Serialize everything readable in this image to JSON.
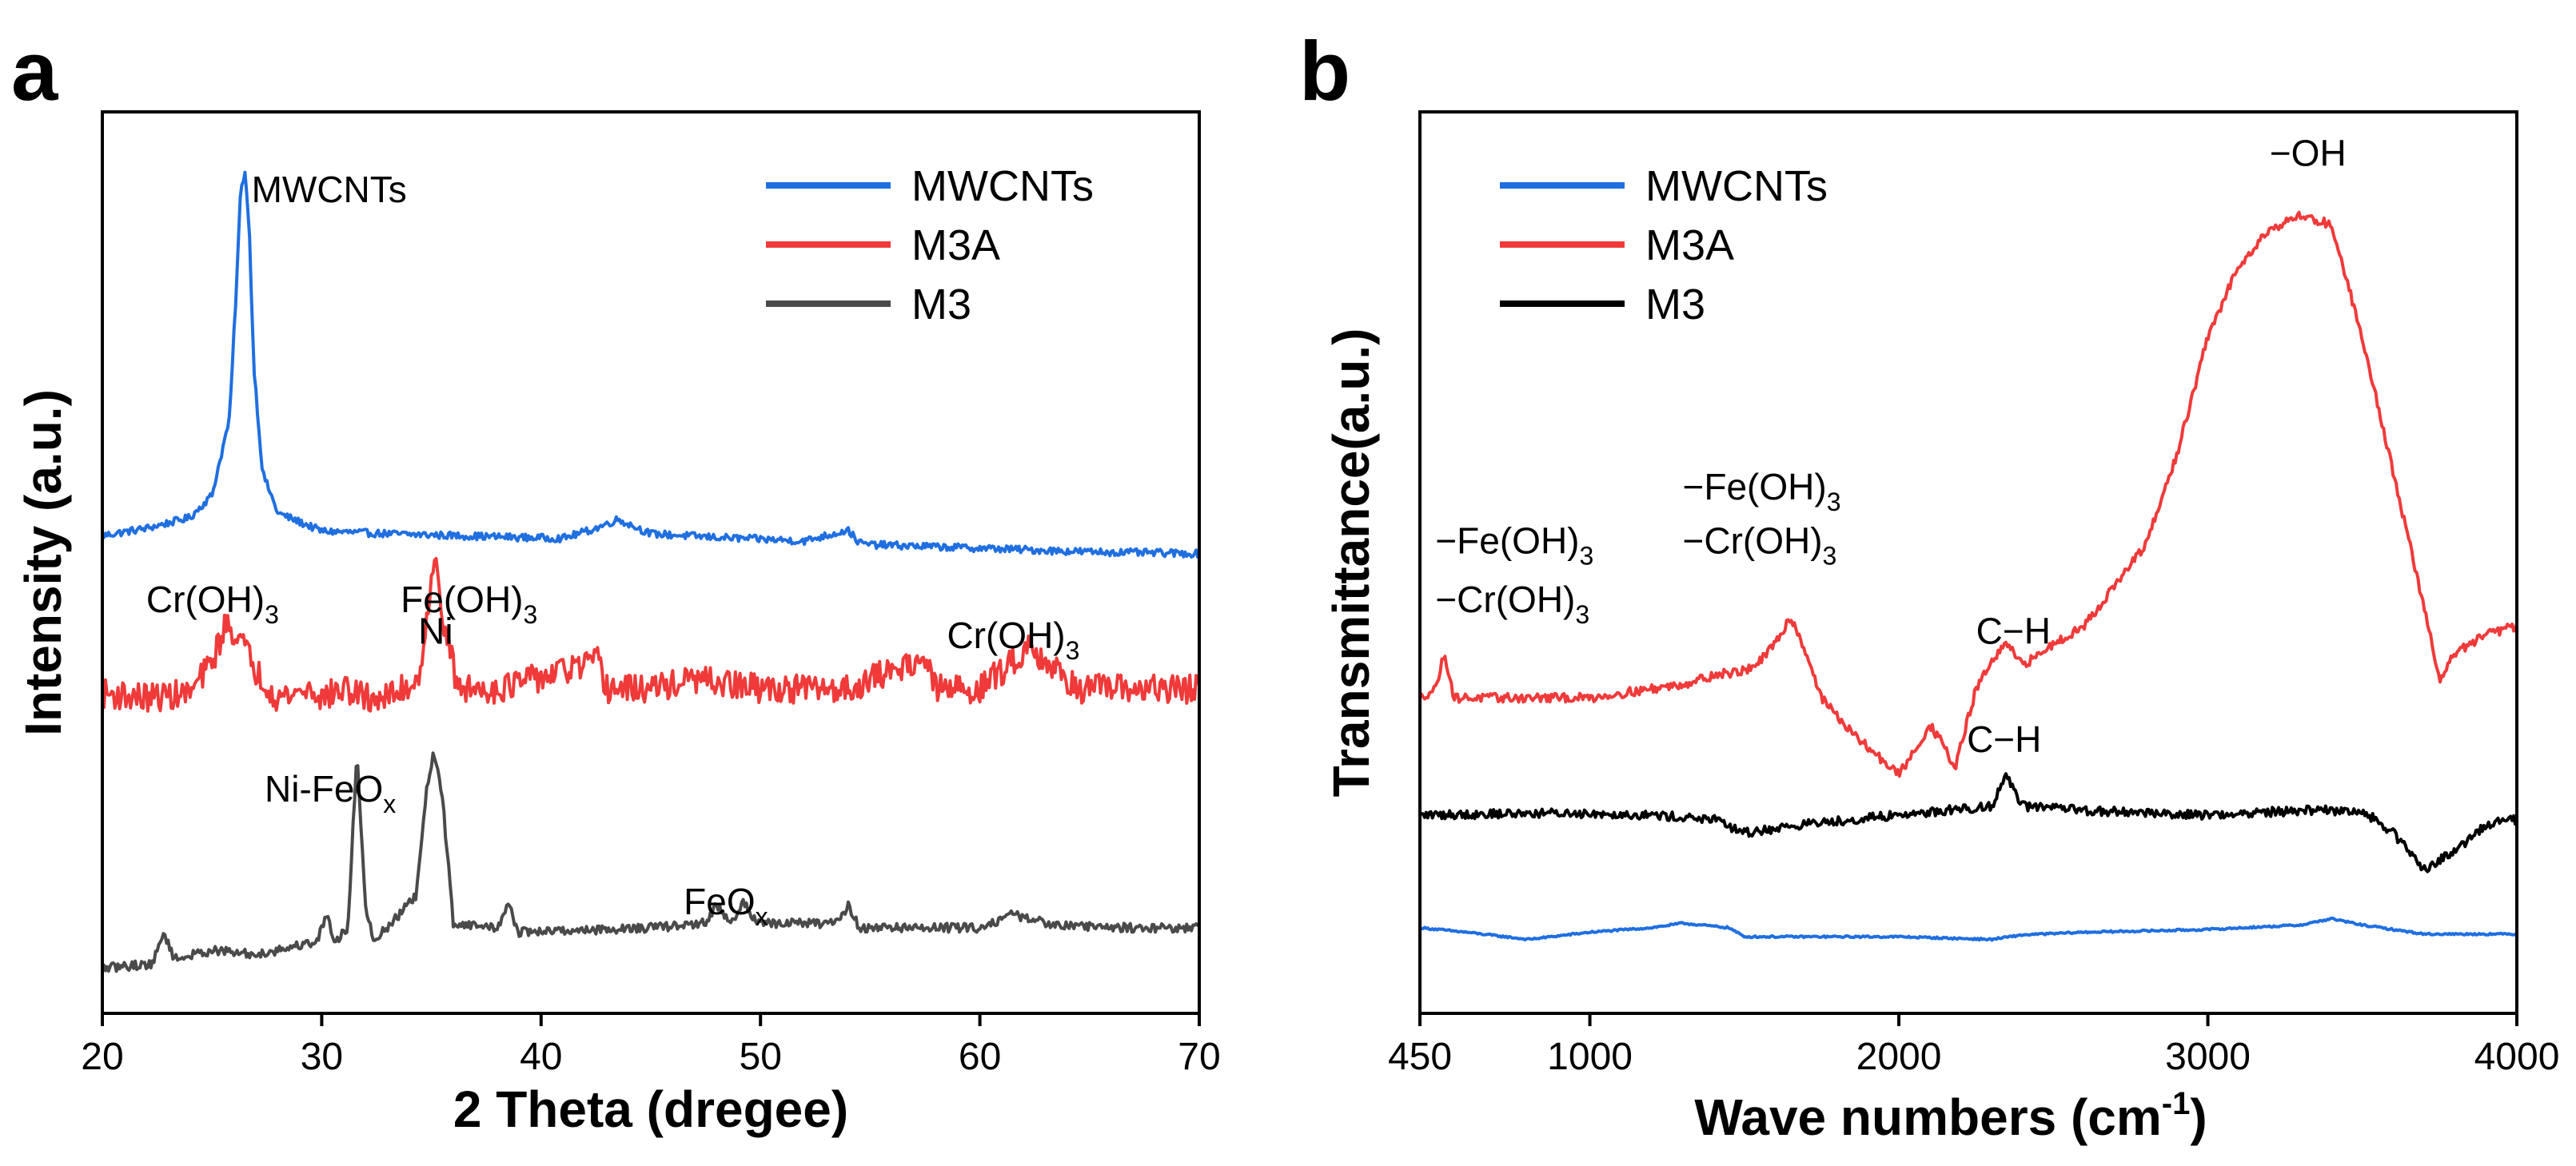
{
  "colors": {
    "mwcnts": "#1f6fe0",
    "m3a": "#f03a3a",
    "m3_xrd": "#4a4a4a",
    "m3_ftir": "#000000",
    "axis": "#000000"
  },
  "chart_data": [
    {
      "panel": "a",
      "type": "line",
      "title": "",
      "xlabel": "2 Theta (dregee)",
      "ylabel": "Intensity (a.u.)",
      "xlim": [
        20,
        70
      ],
      "ylim": [
        0,
        10
      ],
      "xticks": [
        20,
        30,
        40,
        50,
        60,
        70
      ],
      "yticks_shown": false,
      "legend_position": "top-right",
      "legend": [
        "MWCNTs",
        "M3A",
        "M3"
      ],
      "series": [
        {
          "name": "MWCNTs",
          "color": "#1f6fe0",
          "x": [
            20,
            22,
            24,
            25,
            25.8,
            26.1,
            26.3,
            26.5,
            26.7,
            26.9,
            27.3,
            28,
            30,
            33,
            36,
            39,
            41,
            42.5,
            43.5,
            45,
            48,
            52,
            54,
            54.5,
            55,
            60,
            65,
            70
          ],
          "y": [
            5.3,
            5.38,
            5.5,
            5.75,
            6.6,
            8.0,
            9.1,
            9.35,
            8.7,
            7.2,
            6.0,
            5.55,
            5.35,
            5.32,
            5.3,
            5.28,
            5.27,
            5.38,
            5.48,
            5.32,
            5.28,
            5.24,
            5.36,
            5.22,
            5.2,
            5.16,
            5.12,
            5.1
          ],
          "noise": 0.04
        },
        {
          "name": "M3A",
          "color": "#f03a3a",
          "x": [
            20,
            22,
            24,
            25,
            25.6,
            26.2,
            27,
            28,
            29.5,
            30,
            31,
            32,
            33,
            34.4,
            34.9,
            35.2,
            35.6,
            36.2,
            38,
            42.6,
            43,
            45,
            47,
            50,
            54,
            57.4,
            58,
            60,
            61.5,
            62.3,
            63,
            64.5,
            66,
            68,
            70
          ],
          "y": [
            3.55,
            3.5,
            3.55,
            3.9,
            4.3,
            4.2,
            3.8,
            3.5,
            3.6,
            3.5,
            3.6,
            3.5,
            3.5,
            3.7,
            4.6,
            5.0,
            4.3,
            3.6,
            3.6,
            3.9,
            3.6,
            3.6,
            3.7,
            3.6,
            3.6,
            3.95,
            3.6,
            3.6,
            3.9,
            4.1,
            3.9,
            3.6,
            3.6,
            3.6,
            3.6
          ],
          "noise": 0.16
        },
        {
          "name": "M3",
          "color": "#4a4a4a",
          "x": [
            20,
            22.3,
            22.8,
            23.3,
            25,
            27,
            29.8,
            30.2,
            30.6,
            31.2,
            31.6,
            32.0,
            32.4,
            34.3,
            34.8,
            35.1,
            35.5,
            36.0,
            38,
            38.5,
            39,
            45,
            47.5,
            48,
            48.7,
            49.2,
            49.8,
            53.5,
            54,
            54.5,
            60,
            61.5,
            63,
            66,
            70
          ],
          "y": [
            0.5,
            0.55,
            0.9,
            0.6,
            0.7,
            0.65,
            0.8,
            1.1,
            0.8,
            0.95,
            2.9,
            1.2,
            0.8,
            1.3,
            2.5,
            2.9,
            2.4,
            1.0,
            0.95,
            1.2,
            0.9,
            0.95,
            1.0,
            1.2,
            1.0,
            1.25,
            1.0,
            1.0,
            1.2,
            0.95,
            0.95,
            1.1,
            1.0,
            0.95,
            0.95
          ],
          "noise": 0.05
        }
      ],
      "annotations": [
        {
          "text": "MWCNTs",
          "sub": "",
          "x": 26.8,
          "y": 9.0
        },
        {
          "text": "Cr(OH)",
          "sub": "3",
          "x": 22.0,
          "y": 4.45
        },
        {
          "text": "Fe(OH)",
          "sub": "3",
          "x": 33.6,
          "y": 4.45
        },
        {
          "text": "Ni",
          "sub": "",
          "x": 34.4,
          "y": 4.1
        },
        {
          "text": "Cr(OH)",
          "sub": "3",
          "x": 58.5,
          "y": 4.05
        },
        {
          "text": "Ni-FeO",
          "sub": "x",
          "x": 27.4,
          "y": 2.35
        },
        {
          "text": "FeO",
          "sub": "x",
          "x": 46.5,
          "y": 1.1
        }
      ]
    },
    {
      "panel": "b",
      "type": "line",
      "title": "",
      "xlabel": "Wave numbers (cm-1)",
      "xlabel_main": "Wave numbers (cm",
      "xlabel_sup": "-1",
      "xlabel_close": ")",
      "ylabel": "Transmittance(a.u.)",
      "xlim": [
        450,
        4000
      ],
      "ylim": [
        0,
        10
      ],
      "xticks": [
        450,
        1000,
        2000,
        3000,
        4000
      ],
      "yticks_shown": false,
      "legend_position": "top-left",
      "legend": [
        "MWCNTs",
        "M3A",
        "M3"
      ],
      "series": [
        {
          "name": "MWCNTs",
          "color": "#1f6fe0",
          "x": [
            450,
            600,
            800,
            1000,
            1200,
            1300,
            1450,
            1500,
            1700,
            2000,
            2300,
            2400,
            2600,
            3000,
            3300,
            3400,
            3500,
            3700,
            4000
          ],
          "y": [
            0.95,
            0.9,
            0.82,
            0.9,
            0.95,
            1.0,
            0.95,
            0.85,
            0.85,
            0.85,
            0.82,
            0.87,
            0.9,
            0.93,
            0.98,
            1.05,
            0.98,
            0.88,
            0.88
          ],
          "noise": 0.01
        },
        {
          "name": "M3A",
          "color": "#f03a3a",
          "x": [
            450,
            500,
            530,
            560,
            700,
            1000,
            1300,
            1400,
            1500,
            1550,
            1600,
            1650,
            1700,
            1750,
            1850,
            1950,
            2000,
            2050,
            2100,
            2150,
            2180,
            2250,
            2300,
            2350,
            2400,
            2500,
            2600,
            2800,
            2900,
            3000,
            3100,
            3200,
            3300,
            3400,
            3500,
            3600,
            3700,
            3750,
            3800,
            3900,
            4000
          ],
          "y": [
            3.5,
            3.6,
            4.0,
            3.5,
            3.5,
            3.5,
            3.65,
            3.75,
            3.8,
            3.9,
            4.1,
            4.4,
            4.0,
            3.5,
            3.1,
            2.8,
            2.65,
            2.9,
            3.2,
            2.95,
            2.7,
            3.6,
            3.9,
            4.1,
            3.85,
            4.1,
            4.3,
            5.2,
            6.2,
            7.5,
            8.3,
            8.7,
            8.85,
            8.75,
            7.5,
            6.0,
            4.5,
            3.7,
            4.0,
            4.2,
            4.3
          ],
          "noise": 0.05
        },
        {
          "name": "M3",
          "color": "#000000",
          "x": [
            450,
            800,
            1000,
            1200,
            1400,
            1500,
            1700,
            2000,
            2300,
            2350,
            2400,
            2600,
            3000,
            3300,
            3500,
            3600,
            3700,
            3800,
            3900,
            4000
          ],
          "y": [
            2.2,
            2.22,
            2.22,
            2.2,
            2.15,
            2.0,
            2.1,
            2.2,
            2.3,
            2.65,
            2.3,
            2.25,
            2.2,
            2.25,
            2.25,
            2.0,
            1.6,
            1.8,
            2.1,
            2.15
          ],
          "noise": 0.05
        }
      ],
      "annotations": [
        {
          "text": "−OH",
          "sub": "",
          "x": 3200,
          "y": 9.4
        },
        {
          "text": "−Fe(OH)",
          "sub": "3",
          "x": 500,
          "y": 5.1
        },
        {
          "text": "−Cr(OH)",
          "sub": "3",
          "x": 500,
          "y": 4.45
        },
        {
          "text": "−Fe(OH)",
          "sub": "3",
          "x": 1300,
          "y": 5.7
        },
        {
          "text": "−Cr(OH)",
          "sub": "3",
          "x": 1300,
          "y": 5.1
        },
        {
          "text": "C−H",
          "sub": "",
          "x": 2250,
          "y": 4.1
        },
        {
          "text": "C−H",
          "sub": "",
          "x": 2220,
          "y": 2.9
        }
      ]
    }
  ]
}
